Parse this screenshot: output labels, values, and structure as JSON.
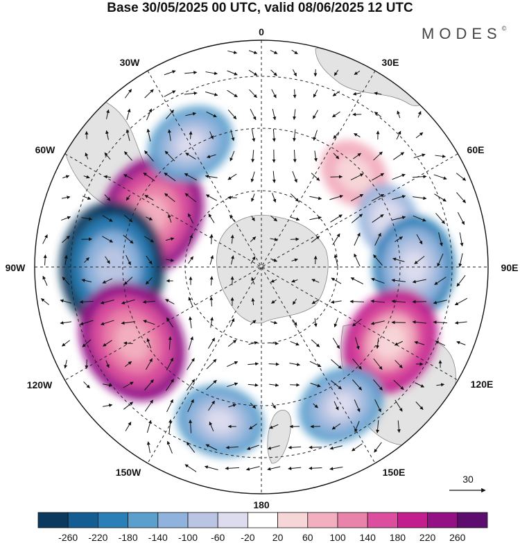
{
  "title": "Base 30/05/2025 00 UTC, valid 08/06/2025 12 UTC",
  "logo": "MODES",
  "logo_mark": "©",
  "longitude_labels": {
    "0": "0",
    "30E": "30E",
    "60E": "60E",
    "90E": "90E",
    "120E": "120E",
    "150E": "150E",
    "180": "180",
    "150W": "150W",
    "120W": "120W",
    "90W": "90W",
    "60W": "60W",
    "30W": "30W"
  },
  "vector_reference": "30",
  "colorbar": {
    "labels": [
      "-260",
      "-220",
      "-180",
      "-140",
      "-100",
      "-60",
      "-20",
      "20",
      "60",
      "100",
      "140",
      "180",
      "220",
      "260"
    ],
    "colors": [
      "#0b3a5e",
      "#145d92",
      "#2a7fb6",
      "#5b9fcc",
      "#8fb3dc",
      "#bac5e3",
      "#dcdcee",
      "#ffffff",
      "#f7d6d8",
      "#f2afc0",
      "#ea83a9",
      "#db4f9e",
      "#c21e8e",
      "#931085",
      "#5c0d6e"
    ]
  },
  "chart_data": {
    "type": "heatmap",
    "title": "Base 30/05/2025 00 UTC, valid 08/06/2025 12 UTC",
    "projection": "south polar stereographic",
    "anomaly_centers": [
      {
        "lon": "65W",
        "sign": "positive",
        "value": 240
      },
      {
        "lon": "90W",
        "sign": "negative",
        "value": -260
      },
      {
        "lon": "120W",
        "sign": "positive",
        "value": 240
      },
      {
        "lon": "165W",
        "sign": "negative",
        "value": -140
      },
      {
        "lon": "30W",
        "sign": "negative",
        "value": -140
      },
      {
        "lon": "45E",
        "sign": "positive",
        "value": 100
      },
      {
        "lon": "70E",
        "sign": "negative",
        "value": -100
      },
      {
        "lon": "90E",
        "sign": "negative",
        "value": -180
      },
      {
        "lon": "120E",
        "sign": "positive",
        "value": 200
      },
      {
        "lon": "150E",
        "sign": "negative",
        "value": -140
      }
    ],
    "colorbar_levels": [
      -260,
      -220,
      -180,
      -140,
      -100,
      -60,
      -20,
      20,
      60,
      100,
      140,
      180,
      220,
      260
    ],
    "vector_reference": 30
  }
}
